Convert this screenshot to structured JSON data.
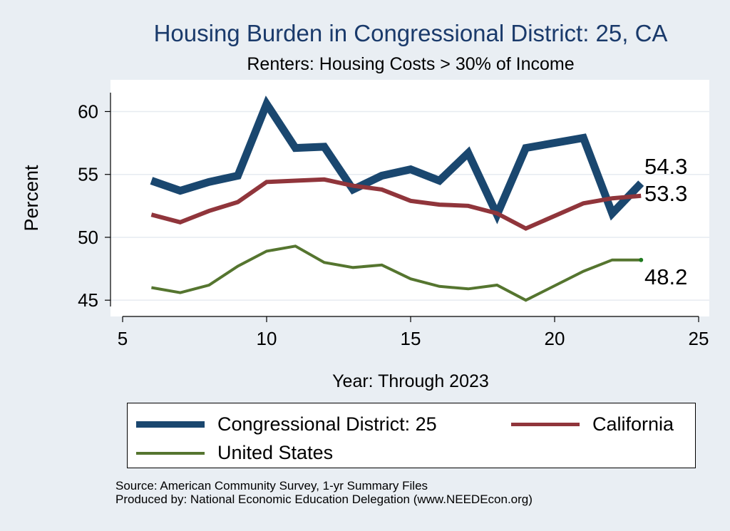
{
  "chart_data": {
    "type": "line",
    "title": "Housing Burden in Congressional District:  25, CA",
    "subtitle": "Renters: Housing Costs > 30% of Income",
    "xlabel": "Year: Through 2023",
    "ylabel": "Percent",
    "xlim": [
      5,
      25
    ],
    "ylim": [
      44.5,
      61.5
    ],
    "xticks": [
      5,
      10,
      15,
      20,
      25
    ],
    "yticks": [
      45,
      50,
      55,
      60
    ],
    "grid": true,
    "x": [
      6,
      7,
      8,
      9,
      10,
      11,
      12,
      13,
      14,
      15,
      16,
      17,
      18,
      19,
      21,
      22,
      23
    ],
    "series": [
      {
        "name": "Congressional District:  25",
        "color": "#1a476f",
        "values": [
          54.5,
          53.7,
          54.4,
          54.9,
          60.6,
          57.1,
          57.2,
          53.8,
          54.9,
          55.4,
          54.5,
          56.7,
          51.8,
          57.1,
          57.9,
          51.9,
          54.3
        ],
        "end_label": "54.3"
      },
      {
        "name": "California",
        "color": "#90353b",
        "values": [
          51.8,
          51.2,
          52.1,
          52.8,
          54.4,
          54.5,
          54.6,
          54.1,
          53.8,
          52.9,
          52.6,
          52.5,
          51.9,
          50.7,
          52.7,
          53.1,
          53.3
        ],
        "end_label": "53.3"
      },
      {
        "name": "United States",
        "color": "#55752f",
        "values": [
          46.0,
          45.6,
          46.2,
          47.7,
          48.9,
          49.3,
          48.0,
          47.6,
          47.8,
          46.7,
          46.1,
          45.9,
          46.2,
          45.0,
          47.3,
          48.2,
          48.2
        ],
        "end_label": "48.2"
      }
    ],
    "legend": [
      {
        "label": "Congressional District:  25",
        "color": "#1a476f"
      },
      {
        "label": "California",
        "color": "#90353b"
      },
      {
        "label": "United States",
        "color": "#55752f"
      }
    ],
    "legend_position": "bottom"
  },
  "source_lines": [
    "Source: American Community Survey, 1-yr Summary Files",
    "Produced by: National Economic Education Delegation (www.NEEDEcon.org)"
  ]
}
